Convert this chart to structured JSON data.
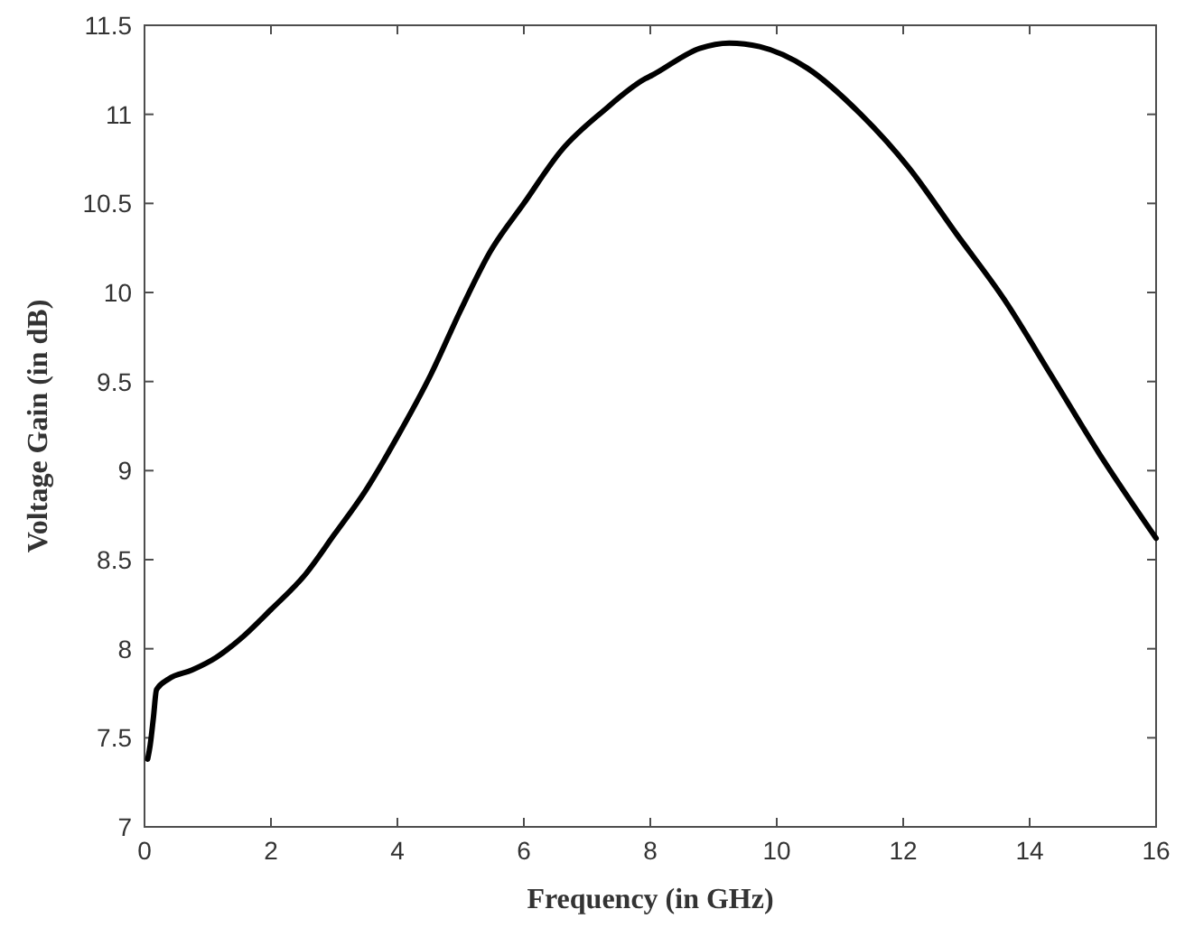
{
  "chart_data": {
    "type": "line",
    "xlabel": "Frequency (in GHz)",
    "ylabel": "Voltage Gain (in dB)",
    "x": [
      0.05,
      0.09,
      0.14,
      0.19,
      0.38,
      0.75,
      1.13,
      1.5,
      2,
      2.55,
      3,
      3.5,
      4,
      4.53,
      5,
      5.47,
      6,
      6.6,
      7.26,
      7.92,
      8.03,
      8.78,
      9.25,
      9.73,
      10.48,
      11.33,
      12.09,
      12.84,
      13.6,
      14.35,
      15.11,
      16
    ],
    "series": [
      {
        "color": "#000000",
        "values": [
          7.38,
          7.46,
          7.61,
          7.77,
          7.83,
          7.88,
          7.95,
          8.05,
          8.22,
          8.42,
          8.64,
          8.89,
          9.19,
          9.54,
          9.9,
          10.23,
          10.5,
          10.8,
          11.02,
          11.2,
          11.22,
          11.37,
          11.4,
          11.38,
          11.26,
          11.0,
          10.7,
          10.33,
          9.96,
          9.53,
          9.09,
          8.62
        ]
      }
    ],
    "xlim": [
      0,
      16
    ],
    "xticks": [
      0,
      2,
      4,
      6,
      8,
      10,
      12,
      14,
      16
    ],
    "ylim": [
      7,
      11.5
    ],
    "yticks": [
      7,
      7.5,
      8,
      8.5,
      9,
      9.5,
      10,
      10.5,
      11,
      11.5
    ],
    "grid": false,
    "marker": "none",
    "line_style": "solid"
  }
}
